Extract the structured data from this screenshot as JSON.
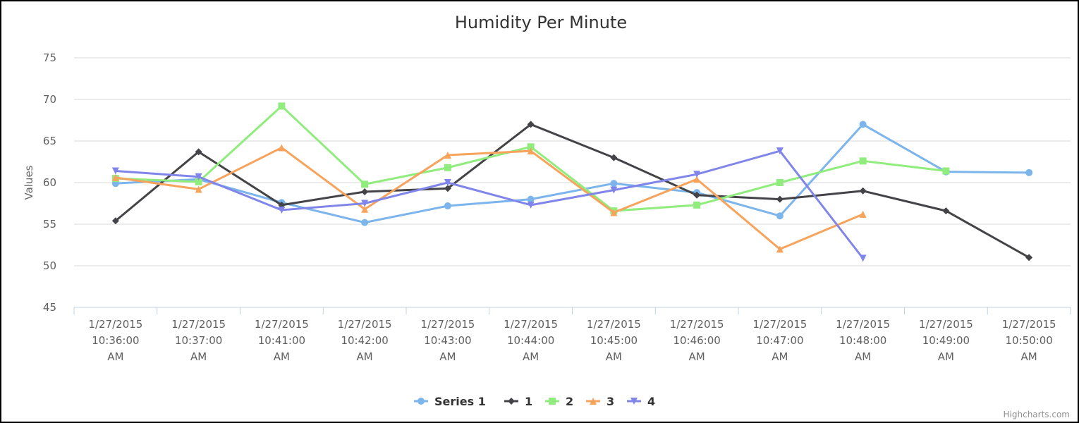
{
  "chart_data": {
    "type": "line",
    "title": "Humidity Per Minute",
    "xlabel": "",
    "ylabel": "Values",
    "ylim": [
      45,
      75
    ],
    "yticks": [
      "45",
      "50",
      "55",
      "60",
      "65",
      "70",
      "75"
    ],
    "grid": "horizontal",
    "legend_position": "bottom-center",
    "categories": [
      [
        "1/27/2015",
        "10:36:00",
        "AM"
      ],
      [
        "1/27/2015",
        "10:37:00",
        "AM"
      ],
      [
        "1/27/2015",
        "10:41:00",
        "AM"
      ],
      [
        "1/27/2015",
        "10:42:00",
        "AM"
      ],
      [
        "1/27/2015",
        "10:43:00",
        "AM"
      ],
      [
        "1/27/2015",
        "10:44:00",
        "AM"
      ],
      [
        "1/27/2015",
        "10:45:00",
        "AM"
      ],
      [
        "1/27/2015",
        "10:46:00",
        "AM"
      ],
      [
        "1/27/2015",
        "10:47:00",
        "AM"
      ],
      [
        "1/27/2015",
        "10:48:00",
        "AM"
      ],
      [
        "1/27/2015",
        "10:49:00",
        "AM"
      ],
      [
        "1/27/2015",
        "10:50:00",
        "AM"
      ]
    ],
    "series": [
      {
        "name": "Series 1",
        "color": "#7cb5ec",
        "marker": "circle",
        "values": [
          59.9,
          60.4,
          57.6,
          55.2,
          57.2,
          58.0,
          59.9,
          58.8,
          56.0,
          67.0,
          61.3,
          61.2
        ]
      },
      {
        "name": "1",
        "color": "#434348",
        "marker": "diamond",
        "values": [
          55.4,
          63.7,
          57.3,
          58.9,
          59.3,
          67.0,
          63.0,
          58.5,
          58.0,
          59.0,
          56.6,
          51.0
        ]
      },
      {
        "name": "2",
        "color": "#90ed7d",
        "marker": "square",
        "values": [
          60.5,
          60.1,
          69.2,
          59.8,
          61.8,
          64.3,
          56.6,
          57.3,
          60.0,
          62.6,
          61.4,
          null
        ]
      },
      {
        "name": "3",
        "color": "#f7a35c",
        "marker": "triangle",
        "values": [
          60.6,
          59.2,
          64.2,
          56.8,
          63.3,
          63.8,
          56.4,
          60.4,
          52.0,
          56.2,
          null,
          null
        ]
      },
      {
        "name": "4",
        "color": "#8085e9",
        "marker": "triangle-down",
        "values": [
          61.4,
          60.7,
          56.7,
          57.5,
          60.0,
          57.3,
          59.1,
          61.0,
          63.8,
          50.9,
          null,
          null
        ]
      }
    ]
  },
  "credits": "Highcharts.com"
}
